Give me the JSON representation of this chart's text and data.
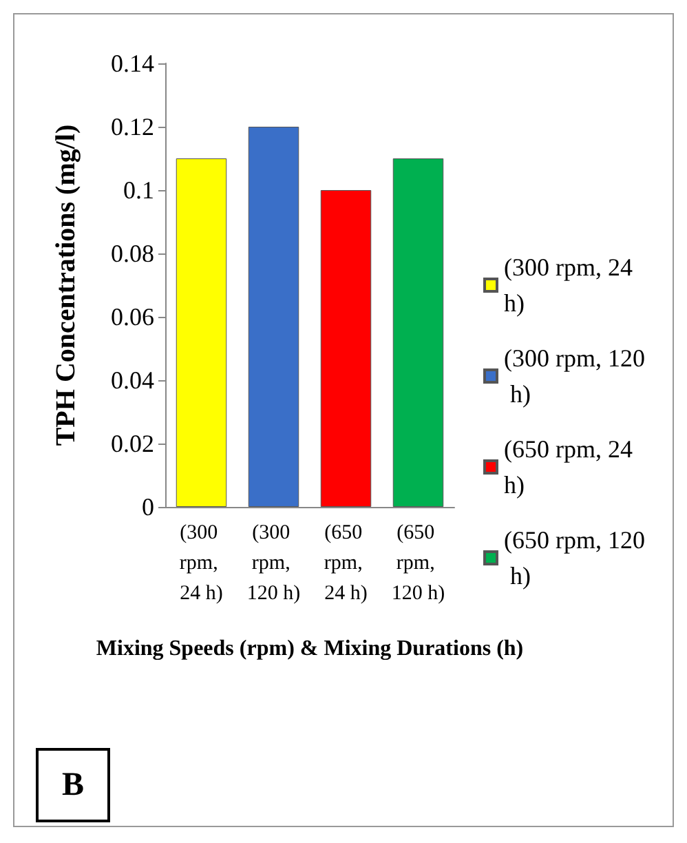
{
  "chart_data": {
    "type": "bar",
    "xlabel": "Mixing Speeds (rpm) & Mixing Durations (h)",
    "ylabel": "TPH Concentrations (mg/l)",
    "categories": [
      "(300 rpm, 24 h)",
      "(300 rpm, 120 h)",
      "(650 rpm, 24 h)",
      "(650 rpm, 120 h)"
    ],
    "series": [
      {
        "name": "(300 rpm, 24 h)",
        "color": "#ffff00",
        "values": [
          0.11,
          null,
          null,
          null
        ]
      },
      {
        "name": "(300 rpm, 120 h)",
        "color": "#3a6fc8",
        "values": [
          null,
          0.12,
          null,
          null
        ]
      },
      {
        "name": "(650 rpm, 24 h)",
        "color": "#ff0000",
        "values": [
          null,
          null,
          0.1,
          null
        ]
      },
      {
        "name": "(650 rpm, 120 h)",
        "color": "#00b050",
        "values": [
          null,
          null,
          null,
          0.11
        ]
      }
    ],
    "ylim": [
      0,
      0.14
    ],
    "yticks": [
      0,
      0.02,
      0.04,
      0.06,
      0.08,
      0.1,
      0.12,
      0.14
    ],
    "grid": false,
    "legend": "right",
    "annotations": [
      "B"
    ]
  }
}
